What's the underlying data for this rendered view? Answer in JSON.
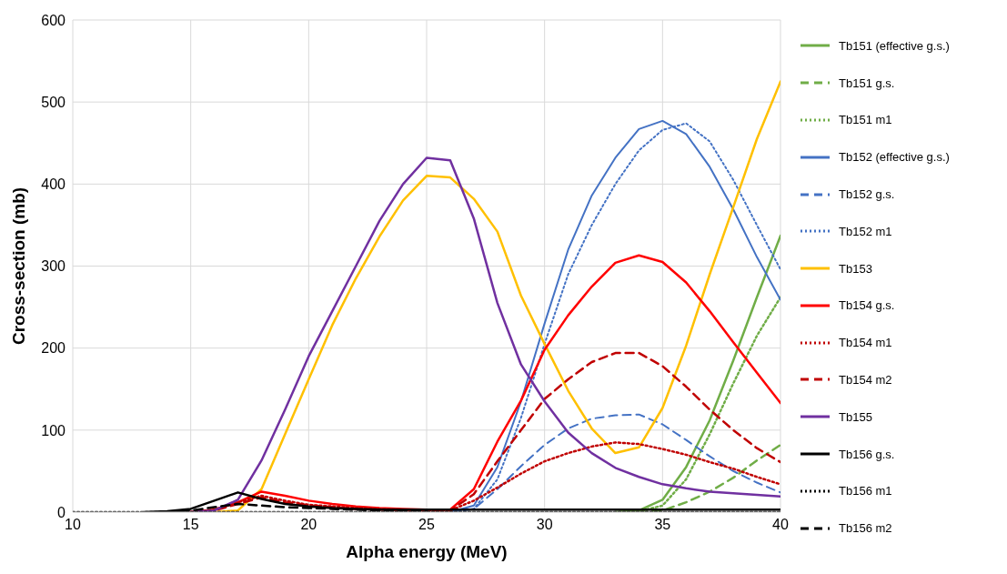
{
  "chart_data": {
    "type": "line",
    "xlabel": "Alpha energy (MeV)",
    "ylabel": "Cross-section (mb)",
    "x": [
      10,
      11,
      12,
      13,
      14,
      15,
      16,
      17,
      18,
      19,
      20,
      21,
      22,
      23,
      24,
      25,
      26,
      27,
      28,
      29,
      30,
      31,
      32,
      33,
      34,
      35,
      36,
      37,
      38,
      39,
      40
    ],
    "xlim": [
      10,
      40
    ],
    "xticks": [
      10,
      15,
      20,
      25,
      30,
      35,
      40
    ],
    "ylim": [
      0,
      600
    ],
    "yticks": [
      0,
      100,
      200,
      300,
      400,
      500,
      600
    ],
    "grid": true,
    "legend": "right",
    "marker": "none",
    "series": [
      {
        "name": "Tb151 (effective g.s.)",
        "color": "#70ad47",
        "line_style": "solid",
        "values": [
          null,
          null,
          null,
          null,
          null,
          null,
          null,
          null,
          null,
          null,
          null,
          null,
          null,
          null,
          null,
          null,
          null,
          null,
          null,
          null,
          null,
          null,
          null,
          0,
          2,
          15,
          55,
          112,
          185,
          262,
          337
        ]
      },
      {
        "name": "Tb151 g.s.",
        "color": "#70ad47",
        "line_style": "dashed",
        "values": [
          null,
          null,
          null,
          null,
          null,
          null,
          null,
          null,
          null,
          null,
          null,
          null,
          null,
          null,
          null,
          null,
          null,
          null,
          null,
          null,
          null,
          null,
          null,
          null,
          0,
          2,
          12,
          25,
          42,
          63,
          82
        ]
      },
      {
        "name": "Tb151 m1",
        "color": "#70ad47",
        "line_style": "dotted",
        "values": [
          null,
          null,
          null,
          null,
          null,
          null,
          null,
          null,
          null,
          null,
          null,
          null,
          null,
          null,
          null,
          null,
          null,
          null,
          null,
          null,
          null,
          null,
          null,
          0,
          1,
          8,
          40,
          95,
          157,
          215,
          262
        ]
      },
      {
        "name": "Tb152 (effective g.s.)",
        "color": "#4472c4",
        "line_style": "solid",
        "values": [
          null,
          null,
          null,
          null,
          null,
          null,
          null,
          null,
          null,
          null,
          null,
          null,
          null,
          null,
          null,
          null,
          0,
          8,
          55,
          135,
          230,
          320,
          386,
          432,
          467,
          477,
          461,
          421,
          369,
          311,
          259
        ]
      },
      {
        "name": "Tb152 g.s.",
        "color": "#4472c4",
        "line_style": "dashed",
        "values": [
          null,
          null,
          null,
          null,
          null,
          null,
          null,
          null,
          null,
          null,
          null,
          null,
          null,
          null,
          null,
          null,
          0,
          4,
          28,
          56,
          82,
          102,
          114,
          118,
          119,
          107,
          88,
          68,
          50,
          36,
          24
        ]
      },
      {
        "name": "Tb152 m1",
        "color": "#4472c4",
        "line_style": "dotted",
        "values": [
          null,
          null,
          null,
          null,
          null,
          null,
          null,
          null,
          null,
          null,
          null,
          null,
          null,
          null,
          null,
          null,
          0,
          4,
          40,
          115,
          205,
          290,
          350,
          400,
          441,
          466,
          474,
          452,
          405,
          350,
          296
        ]
      },
      {
        "name": "Tb153",
        "color": "#ffc000",
        "line_style": "solid",
        "values": [
          null,
          null,
          null,
          null,
          null,
          null,
          0,
          2,
          28,
          95,
          162,
          228,
          285,
          336,
          380,
          410,
          408,
          382,
          342,
          264,
          205,
          148,
          102,
          72,
          79,
          127,
          203,
          290,
          372,
          455,
          525
        ]
      },
      {
        "name": "Tb154 g.s.",
        "color": "#ff0000",
        "line_style": "solid",
        "values": [
          null,
          null,
          null,
          null,
          null,
          0,
          3,
          12,
          25,
          20,
          14,
          10,
          7,
          5,
          4,
          3,
          3,
          28,
          86,
          136,
          198,
          240,
          275,
          304,
          313,
          305,
          280,
          245,
          207,
          170,
          133
        ]
      },
      {
        "name": "Tb154 m1",
        "color": "#c00000",
        "line_style": "dotted",
        "values": [
          null,
          null,
          null,
          null,
          null,
          0,
          3,
          12,
          20,
          14,
          9,
          7,
          5,
          4,
          3,
          2,
          2,
          14,
          30,
          47,
          62,
          72,
          80,
          85,
          83,
          77,
          70,
          61,
          53,
          43,
          34
        ]
      },
      {
        "name": "Tb154 m2",
        "color": "#c00000",
        "line_style": "dashed",
        "values": [
          null,
          null,
          null,
          null,
          null,
          0,
          2,
          10,
          18,
          12,
          8,
          6,
          4,
          3,
          2,
          2,
          2,
          22,
          62,
          100,
          138,
          162,
          183,
          194,
          194,
          178,
          153,
          125,
          100,
          78,
          61
        ]
      },
      {
        "name": "Tb155",
        "color": "#7030a0",
        "line_style": "solid",
        "values": [
          null,
          null,
          null,
          null,
          null,
          0,
          2,
          15,
          63,
          125,
          190,
          245,
          300,
          355,
          400,
          432,
          429,
          358,
          255,
          180,
          135,
          97,
          72,
          54,
          43,
          34,
          29,
          25,
          23,
          21,
          19
        ]
      },
      {
        "name": "Tb156 g.s.",
        "color": "#000000",
        "line_style": "solid",
        "values": [
          null,
          null,
          null,
          0,
          1,
          4,
          14,
          24,
          16,
          10,
          7,
          5,
          4,
          3,
          3,
          3,
          3,
          3,
          3,
          3,
          3,
          3,
          3,
          3,
          3,
          3,
          3,
          3,
          3,
          3,
          3
        ]
      },
      {
        "name": "Tb156 m1",
        "color": "#000000",
        "line_style": "dotted",
        "values": [
          0,
          0,
          0,
          0,
          0,
          0,
          0,
          0,
          0,
          0,
          0,
          0,
          0,
          0,
          0,
          0,
          0,
          0,
          0,
          0,
          0,
          0,
          0,
          0,
          0,
          0,
          0,
          0,
          0,
          0,
          0
        ]
      },
      {
        "name": "Tb156 m2",
        "color": "#000000",
        "line_style": "dashed",
        "values": [
          null,
          null,
          null,
          null,
          0,
          2,
          6,
          10,
          8,
          6,
          5,
          4,
          3,
          2,
          2,
          2,
          null,
          null,
          null,
          null,
          null,
          null,
          null,
          null,
          null,
          null,
          null,
          null,
          null,
          null,
          null
        ]
      }
    ]
  }
}
